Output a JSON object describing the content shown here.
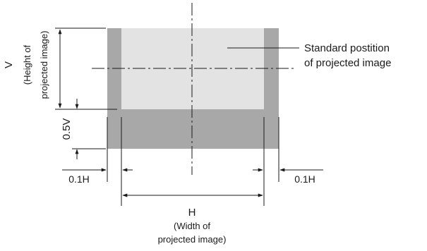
{
  "labels": {
    "v_symbol": "V",
    "v_desc_line1": "(Height of",
    "v_desc_line2": "projected image)",
    "half_v": "0.5V",
    "h_symbol": "H",
    "h_desc_line1": "(Width of",
    "h_desc_line2": "projected image)",
    "left_shift": "0.1H",
    "right_shift": "0.1H",
    "standard_line1": "Standard postition",
    "standard_line2": "of projected image"
  },
  "colors": {
    "standard_area": "#e3e3e3",
    "shift_area": "#a8a8a8",
    "lines": "#1a1a1a"
  }
}
